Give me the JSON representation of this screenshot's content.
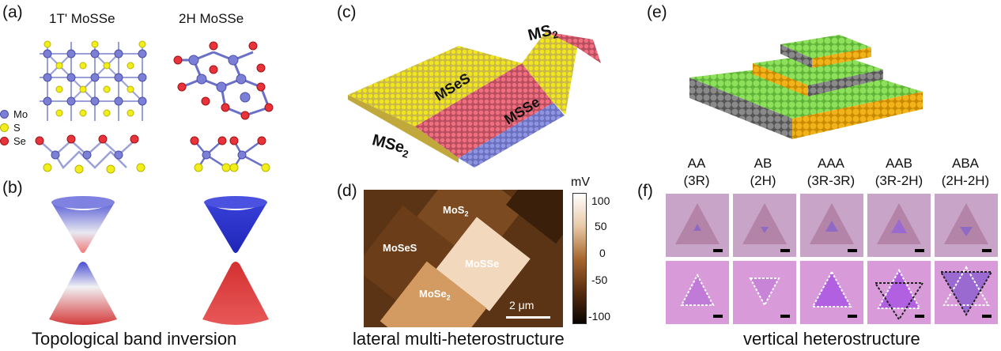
{
  "figure": {
    "panels": {
      "a": {
        "label": "(a)",
        "title_left": "1T' MoSSe",
        "title_right": "2H MoSSe",
        "legend": [
          {
            "name": "Mo",
            "color": "#7b7fd6"
          },
          {
            "name": "S",
            "color": "#f2ee1a"
          },
          {
            "name": "Se",
            "color": "#e8333a"
          }
        ]
      },
      "b": {
        "label": "(b)",
        "caption": "Topological band inversion"
      },
      "c": {
        "label": "(c)",
        "region_labels": {
          "ms2": "MS",
          "ms2_sub": "2",
          "msse_top": "MSeS",
          "msse_bottom": "MSSe",
          "mse2": "MSe",
          "mse2_sub": "2"
        }
      },
      "d": {
        "label": "(d)",
        "unit": "mV",
        "colorbar_ticks": [
          "100",
          "50",
          "0",
          "-50",
          "-100"
        ],
        "domains": {
          "mos2": "MoS",
          "mos2_sub": "2",
          "moses": "MoSeS",
          "mosse": "MoSSe",
          "mose2": "MoSe",
          "mose2_sub": "2"
        },
        "scalebar": "2 μm",
        "caption": "lateral multi-heterostructure"
      },
      "e": {
        "label": "(e)"
      },
      "f": {
        "label": "(f)",
        "columns": [
          {
            "stack": "AA",
            "phase": "(3R)"
          },
          {
            "stack": "AB",
            "phase": "(2H)"
          },
          {
            "stack": "AAA",
            "phase": "(3R-3R)"
          },
          {
            "stack": "AAB",
            "phase": "(3R-2H)"
          },
          {
            "stack": "ABA",
            "phase": "(2H-2H)"
          }
        ],
        "caption": "vertical heterostructure"
      }
    }
  }
}
